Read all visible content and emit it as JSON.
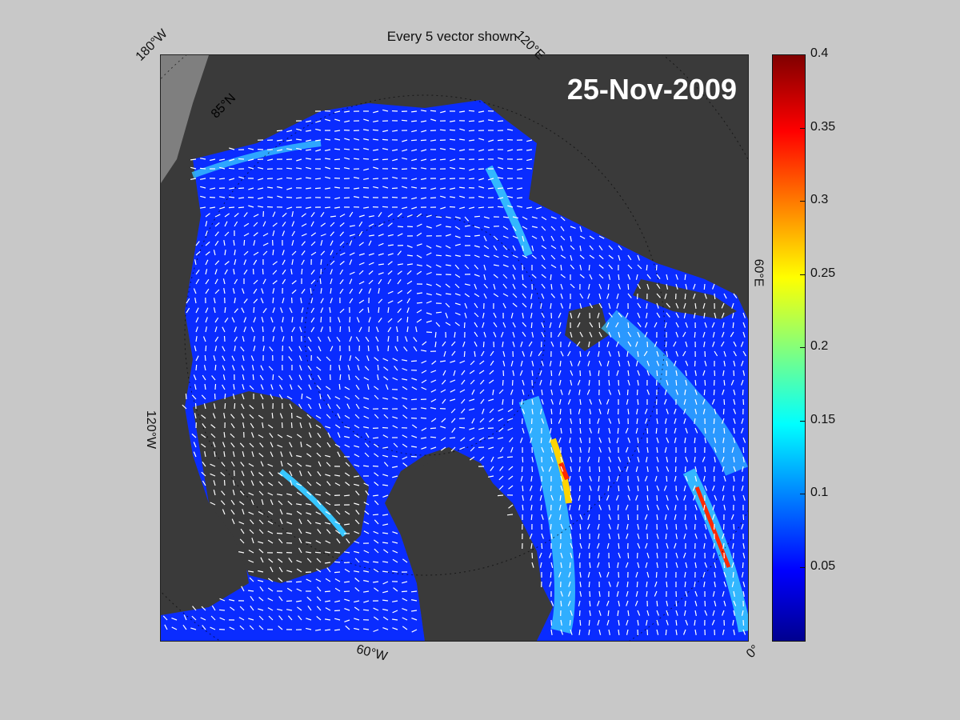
{
  "title": "Every 5 vector shown",
  "date": "25-Nov-2009",
  "labels": {
    "lon_180w": "180°W",
    "lon_120e": "120°E",
    "lon_60e": "60°E",
    "lon_120w": "120°W",
    "lon_60w": "60°W",
    "lon_0": "0°",
    "lat_85n": "85°N"
  },
  "colorbar": {
    "min": 0,
    "max": 0.4,
    "ticks": [
      "0.4",
      "0.35",
      "0.3",
      "0.25",
      "0.2",
      "0.15",
      "0.1",
      "0.05"
    ],
    "tick_values": [
      0.4,
      0.35,
      0.3,
      0.25,
      0.2,
      0.15,
      0.1,
      0.05
    ],
    "colormap": "jet"
  },
  "colors": {
    "background": "#c8c8c8",
    "land": "#3a3a3a",
    "ice_low": "#0a2cff",
    "ice_mid": "#37c6ff",
    "ice_high": "#ff2a00",
    "vector": "#ffffff"
  }
}
